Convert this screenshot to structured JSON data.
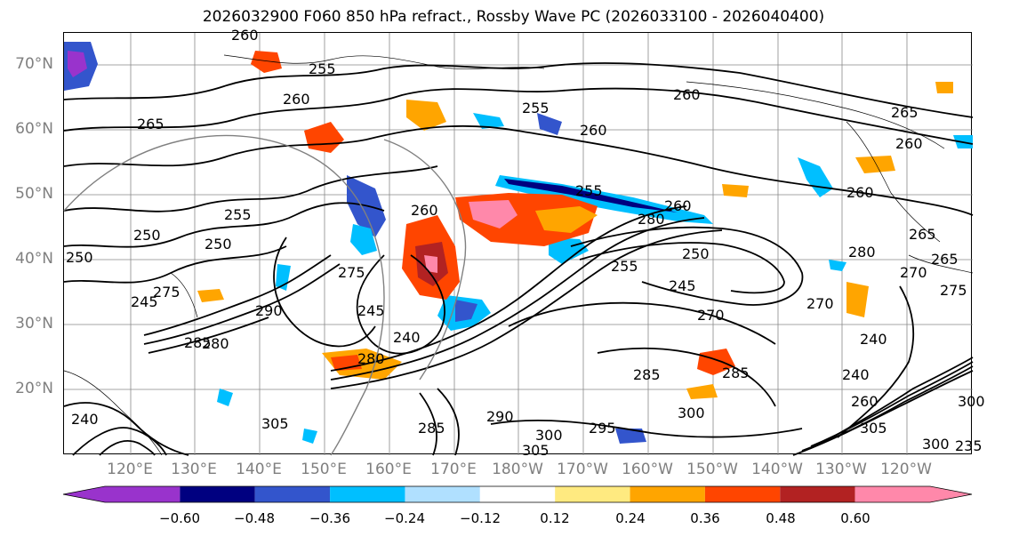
{
  "title": "2026032900 F060 850 hPa refract., Rossby Wave PC (2026033100 - 2026040400)",
  "lat_labels": [
    "70°N",
    "60°N",
    "50°N",
    "40°N",
    "30°N",
    "20°N"
  ],
  "lon_labels": [
    "120°E",
    "130°E",
    "140°E",
    "150°E",
    "160°E",
    "170°E",
    "180°W",
    "170°W",
    "160°W",
    "150°W",
    "140°W",
    "130°W",
    "120°W"
  ],
  "contour_labels": [
    "260",
    "255",
    "260",
    "265",
    "255",
    "260",
    "260",
    "265",
    "260",
    "255",
    "255",
    "260",
    "250",
    "250",
    "250",
    "245",
    "275",
    "245",
    "240",
    "280",
    "255",
    "260",
    "250",
    "245",
    "270",
    "285",
    "290",
    "280",
    "300",
    "305",
    "285",
    "290",
    "300",
    "295",
    "305",
    "300",
    "240",
    "260",
    "270",
    "300",
    "280",
    "305",
    "285",
    "275",
    "240",
    "270",
    "265",
    "260",
    "240",
    "280",
    "265",
    "275",
    "285",
    "235"
  ],
  "colorbar": {
    "ticks": [
      "−0.60",
      "−0.48",
      "−0.36",
      "−0.24",
      "−0.12",
      "0.12",
      "0.24",
      "0.36",
      "0.48",
      "0.60"
    ],
    "colors": [
      "#9933cc",
      "#000080",
      "#3355cc",
      "#00bfff",
      "#b0e0ff",
      "#ffffff",
      "#ffea80",
      "#ffa500",
      "#ff4500",
      "#b22222",
      "#ff88aa"
    ]
  }
}
